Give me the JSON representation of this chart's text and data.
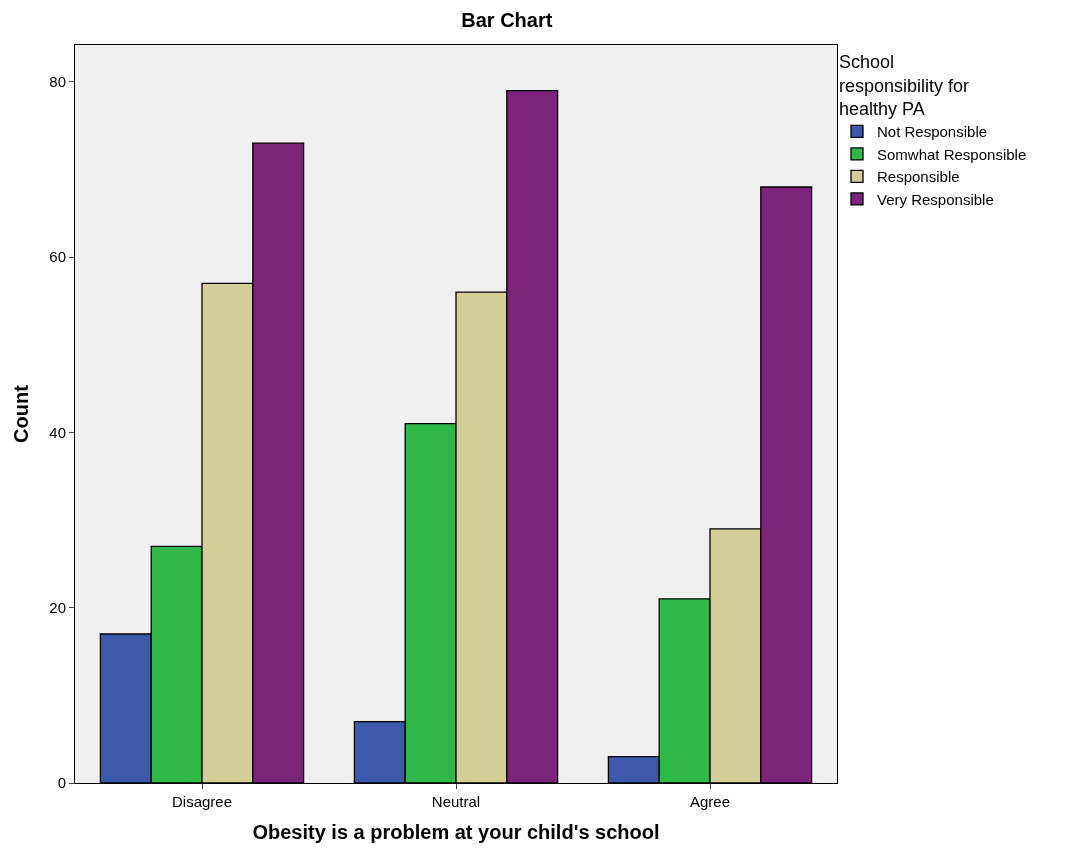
{
  "chart_data": {
    "type": "bar",
    "title": "Bar Chart",
    "xlabel": "Obesity is a problem at your child's school",
    "ylabel": "Count",
    "legend_title": "School responsibility for healthy PA",
    "categories": [
      "Disagree",
      "Neutral",
      "Agree"
    ],
    "series": [
      {
        "name": "Not Responsible",
        "color": "#3e58ac",
        "values": [
          17,
          7,
          3
        ]
      },
      {
        "name": "Somwhat Responsible",
        "color": "#2eb848",
        "values": [
          27,
          41,
          21
        ]
      },
      {
        "name": "Responsible",
        "color": "#d3ce97",
        "values": [
          57,
          56,
          29
        ]
      },
      {
        "name": "Very Responsible",
        "color": "#7b2479",
        "values": [
          73,
          79,
          68
        ]
      }
    ],
    "ylim": [
      0,
      84.2
    ],
    "yticks": [
      0,
      20,
      40,
      60,
      80
    ],
    "grid": false,
    "legend": "top right"
  }
}
